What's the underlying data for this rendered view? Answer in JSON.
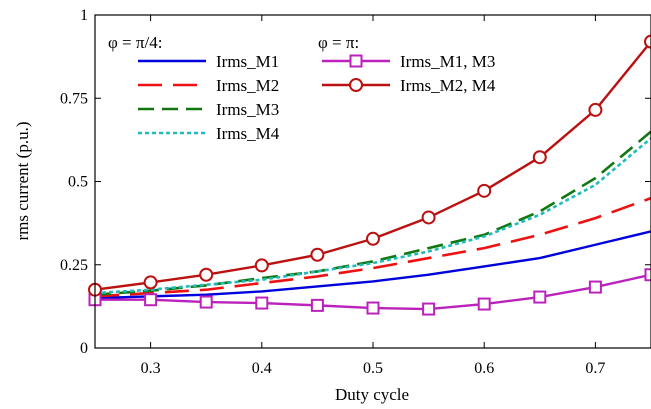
{
  "chart_data": {
    "type": "line",
    "title": "",
    "xlabel": "Duty cycle",
    "ylabel": "rms current (p.u.)",
    "xlim": [
      0.25,
      0.75
    ],
    "ylim": [
      0,
      1
    ],
    "xticks": [
      0.3,
      0.4,
      0.5,
      0.6,
      0.7
    ],
    "xtick_labels": [
      "0.3",
      "0.4",
      "0.5",
      "0.6",
      "0.7"
    ],
    "yticks": [
      0,
      0.25,
      0.5,
      0.75,
      1
    ],
    "ytick_labels": [
      "0",
      "0.25",
      "0.5",
      "0.75",
      "1"
    ],
    "grid": false,
    "legend_placement": "top-left",
    "legend_groups": [
      {
        "heading": "φ = π/4:",
        "series": [
          0,
          1,
          2,
          3
        ]
      },
      {
        "heading": "φ = π:",
        "series": [
          4,
          5
        ]
      }
    ],
    "series": [
      {
        "name": "Irms_M1",
        "color": "#0000dd",
        "dash": "solid",
        "marker": "none",
        "x": [
          0.25,
          0.3,
          0.35,
          0.4,
          0.45,
          0.5,
          0.55,
          0.6,
          0.65,
          0.7,
          0.75
        ],
        "y": [
          0.15,
          0.155,
          0.16,
          0.17,
          0.185,
          0.2,
          0.22,
          0.245,
          0.27,
          0.31,
          0.35
        ]
      },
      {
        "name": "Irms_M2",
        "color": "#ee1111",
        "dash": "long-dash",
        "marker": "none",
        "x": [
          0.25,
          0.3,
          0.35,
          0.4,
          0.45,
          0.5,
          0.55,
          0.6,
          0.65,
          0.7,
          0.75
        ],
        "y": [
          0.155,
          0.165,
          0.175,
          0.195,
          0.215,
          0.24,
          0.27,
          0.3,
          0.34,
          0.39,
          0.45
        ]
      },
      {
        "name": "Irms_M3",
        "color": "#117711",
        "dash": "dash",
        "marker": "none",
        "x": [
          0.25,
          0.3,
          0.35,
          0.4,
          0.45,
          0.5,
          0.55,
          0.6,
          0.65,
          0.7,
          0.75
        ],
        "y": [
          0.16,
          0.172,
          0.188,
          0.21,
          0.23,
          0.26,
          0.3,
          0.34,
          0.41,
          0.51,
          0.65
        ]
      },
      {
        "name": "Irms_M4",
        "color": "#22bbbb",
        "dash": "dot",
        "marker": "none",
        "x": [
          0.25,
          0.3,
          0.35,
          0.4,
          0.45,
          0.5,
          0.55,
          0.6,
          0.65,
          0.7,
          0.75
        ],
        "y": [
          0.165,
          0.175,
          0.19,
          0.205,
          0.23,
          0.255,
          0.29,
          0.335,
          0.4,
          0.49,
          0.63
        ]
      },
      {
        "name": "Irms_M1, M3",
        "color": "#bb22bb",
        "dash": "solid",
        "marker": "square",
        "x": [
          0.25,
          0.3,
          0.35,
          0.4,
          0.45,
          0.5,
          0.55,
          0.6,
          0.65,
          0.7,
          0.75
        ],
        "y": [
          0.145,
          0.145,
          0.138,
          0.135,
          0.128,
          0.12,
          0.117,
          0.132,
          0.153,
          0.183,
          0.22
        ]
      },
      {
        "name": "Irms_M2, M4",
        "color": "#bb1111",
        "dash": "solid",
        "marker": "circle",
        "x": [
          0.25,
          0.3,
          0.35,
          0.4,
          0.45,
          0.5,
          0.55,
          0.6,
          0.65,
          0.7,
          0.75
        ],
        "y": [
          0.175,
          0.197,
          0.22,
          0.248,
          0.28,
          0.328,
          0.392,
          0.472,
          0.573,
          0.715,
          0.92
        ]
      }
    ]
  }
}
